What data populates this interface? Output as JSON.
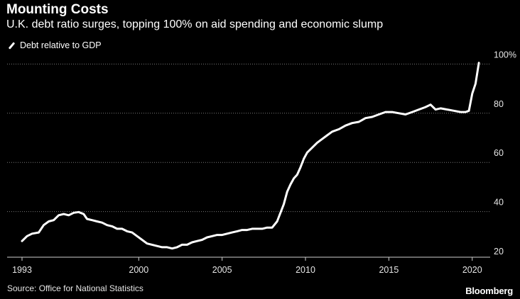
{
  "header": {
    "title": "Mounting Costs",
    "subtitle": "U.K. debt ratio surges, topping 100% on aid spending and economic slump"
  },
  "footer": {
    "source": "Source: Office for National Statistics",
    "brand": "Bloomberg"
  },
  "colors": {
    "background": "#000000",
    "line": "#ffffff",
    "grid": "#7a7a7a",
    "text": "#ffffff"
  },
  "chart_data": {
    "type": "line",
    "title": "Mounting Costs",
    "subtitle": "U.K. debt ratio surges, topping 100% on aid spending and economic slump",
    "xlabel": "",
    "ylabel": "",
    "legend": "top-left",
    "grid": "horizontal dotted",
    "xlim": [
      1993,
      2021.8
    ],
    "ylim": [
      20,
      103
    ],
    "x_ticks": [
      {
        "value": 1993,
        "label": "1993"
      },
      {
        "value": 2000,
        "label": "2000"
      },
      {
        "value": 2005,
        "label": "2005"
      },
      {
        "value": 2010,
        "label": "2010"
      },
      {
        "value": 2015,
        "label": "2015"
      },
      {
        "value": 2020,
        "label": "2020"
      }
    ],
    "y_ticks": [
      {
        "value": 20,
        "label": "20"
      },
      {
        "value": 40,
        "label": "40"
      },
      {
        "value": 60,
        "label": "60"
      },
      {
        "value": 80,
        "label": "80"
      },
      {
        "value": 100,
        "label": "100%"
      }
    ],
    "series": [
      {
        "name": "Debt relative to GDP",
        "x": [
          1993.0,
          1993.3,
          1993.6,
          1994.0,
          1994.3,
          1994.6,
          1994.9,
          1995.2,
          1995.5,
          1995.8,
          1996.1,
          1996.4,
          1996.7,
          1996.9,
          1997.2,
          1997.5,
          1997.8,
          1998.1,
          1998.4,
          1998.7,
          1999.0,
          1999.3,
          1999.6,
          1999.9,
          2000.2,
          2000.5,
          2000.8,
          2001.1,
          2001.4,
          2001.7,
          2002.0,
          2002.3,
          2002.6,
          2002.9,
          2003.2,
          2003.5,
          2003.8,
          2004.1,
          2004.4,
          2004.7,
          2005.0,
          2005.3,
          2005.6,
          2005.9,
          2006.2,
          2006.5,
          2006.8,
          2007.1,
          2007.4,
          2007.7,
          2008.0,
          2008.3,
          2008.5,
          2008.7,
          2008.9,
          2009.1,
          2009.3,
          2009.5,
          2009.7,
          2009.9,
          2010.1,
          2010.4,
          2010.7,
          2011.0,
          2011.3,
          2011.6,
          2012.0,
          2012.4,
          2012.8,
          2013.2,
          2013.6,
          2014.0,
          2014.4,
          2014.8,
          2015.2,
          2015.6,
          2016.0,
          2016.4,
          2016.8,
          2017.2,
          2017.5,
          2017.8,
          2018.1,
          2018.5,
          2018.9,
          2019.3,
          2019.6,
          2019.8,
          2020.0,
          2020.2,
          2020.4
        ],
        "values": [
          28.0,
          30.0,
          31.0,
          31.5,
          34.5,
          36.0,
          36.5,
          38.5,
          39.0,
          38.5,
          39.5,
          39.8,
          39.0,
          37.0,
          36.5,
          36.0,
          35.5,
          34.5,
          34.0,
          33.0,
          33.0,
          32.0,
          31.5,
          30.0,
          28.5,
          27.0,
          26.5,
          26.0,
          25.5,
          25.5,
          25.0,
          25.5,
          26.5,
          26.5,
          27.5,
          28.0,
          28.5,
          29.5,
          30.0,
          30.5,
          30.5,
          31.0,
          31.5,
          32.0,
          32.5,
          32.5,
          33.0,
          33.0,
          33.0,
          33.5,
          33.5,
          36.0,
          39.5,
          43.0,
          48.0,
          51.0,
          53.5,
          55.0,
          58.0,
          61.5,
          64.0,
          66.0,
          68.0,
          69.5,
          71.0,
          72.5,
          73.5,
          75.0,
          76.0,
          76.5,
          78.0,
          78.5,
          79.5,
          80.5,
          80.5,
          80.0,
          79.5,
          80.5,
          81.5,
          82.5,
          83.5,
          81.5,
          82.0,
          81.5,
          81.0,
          80.5,
          80.5,
          81.0,
          88.0,
          92.0,
          100.5
        ]
      }
    ]
  }
}
